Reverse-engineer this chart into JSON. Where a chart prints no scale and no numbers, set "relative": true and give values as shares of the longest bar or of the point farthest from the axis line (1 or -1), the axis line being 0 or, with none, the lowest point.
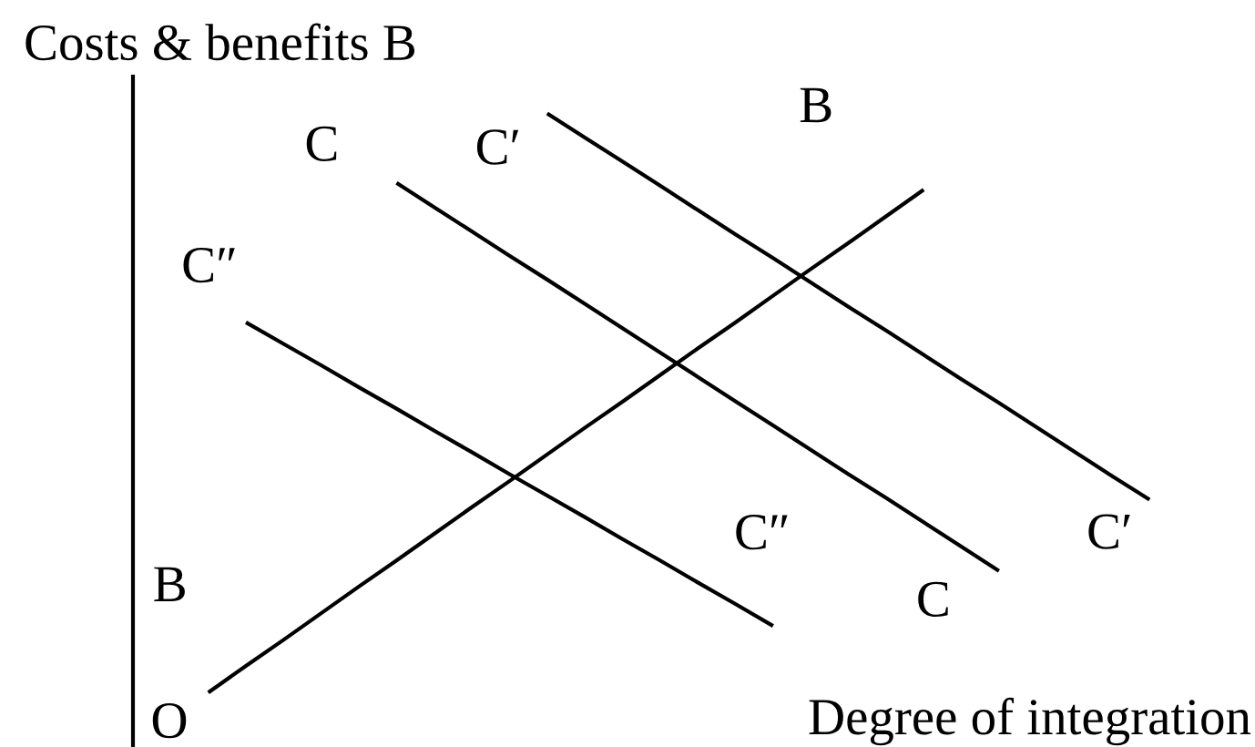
{
  "chart_data": {
    "type": "line",
    "relative": true,
    "xlabel": "Degree of integration",
    "ylabel": "Costs & benefits B",
    "annotations": [
      "O"
    ],
    "categories": [
      null,
      null,
      null,
      null,
      null,
      null,
      null,
      null,
      null,
      null,
      null,
      null,
      null,
      null,
      null,
      null,
      null,
      null,
      null,
      null,
      null,
      null,
      null,
      null,
      null,
      null
    ],
    "series": [
      {
        "name": "B",
        "color": "#000000",
        "values": [
          0,
          0.046,
          0.091,
          0.137,
          0.183,
          0.228,
          0.274,
          0.32,
          0.365,
          0.411,
          0.457,
          0.502,
          0.548,
          0.594,
          0.639,
          0.685,
          0.731,
          0.776,
          0.822,
          0.868,
          null,
          null,
          null,
          null,
          null,
          null
        ]
      },
      {
        "name": "C",
        "color": "#000000",
        "values": [
          null,
          null,
          null,
          null,
          null,
          0.88,
          0.838,
          0.796,
          0.754,
          0.713,
          0.671,
          0.629,
          0.587,
          0.545,
          0.503,
          0.461,
          0.419,
          0.377,
          0.336,
          0.294,
          0.252,
          0.21,
          null,
          null,
          null,
          null
        ]
      },
      {
        "name": "C′",
        "color": "#000000",
        "values": [
          null,
          null,
          null,
          null,
          null,
          null,
          null,
          null,
          null,
          1.0,
          0.958,
          0.917,
          0.875,
          0.833,
          0.791,
          0.75,
          0.708,
          0.666,
          0.625,
          0.583,
          0.541,
          0.5,
          0.458,
          0.416,
          0.374,
          0.333
        ]
      },
      {
        "name": "C″",
        "color": "#000000",
        "values": [
          null,
          0.639,
          0.602,
          0.565,
          0.527,
          0.49,
          0.452,
          0.415,
          0.377,
          0.34,
          0.303,
          0.265,
          0.228,
          0.19,
          0.153,
          0.115,
          null,
          null,
          null,
          null,
          null,
          null,
          null,
          null,
          null,
          null
        ]
      }
    ]
  }
}
